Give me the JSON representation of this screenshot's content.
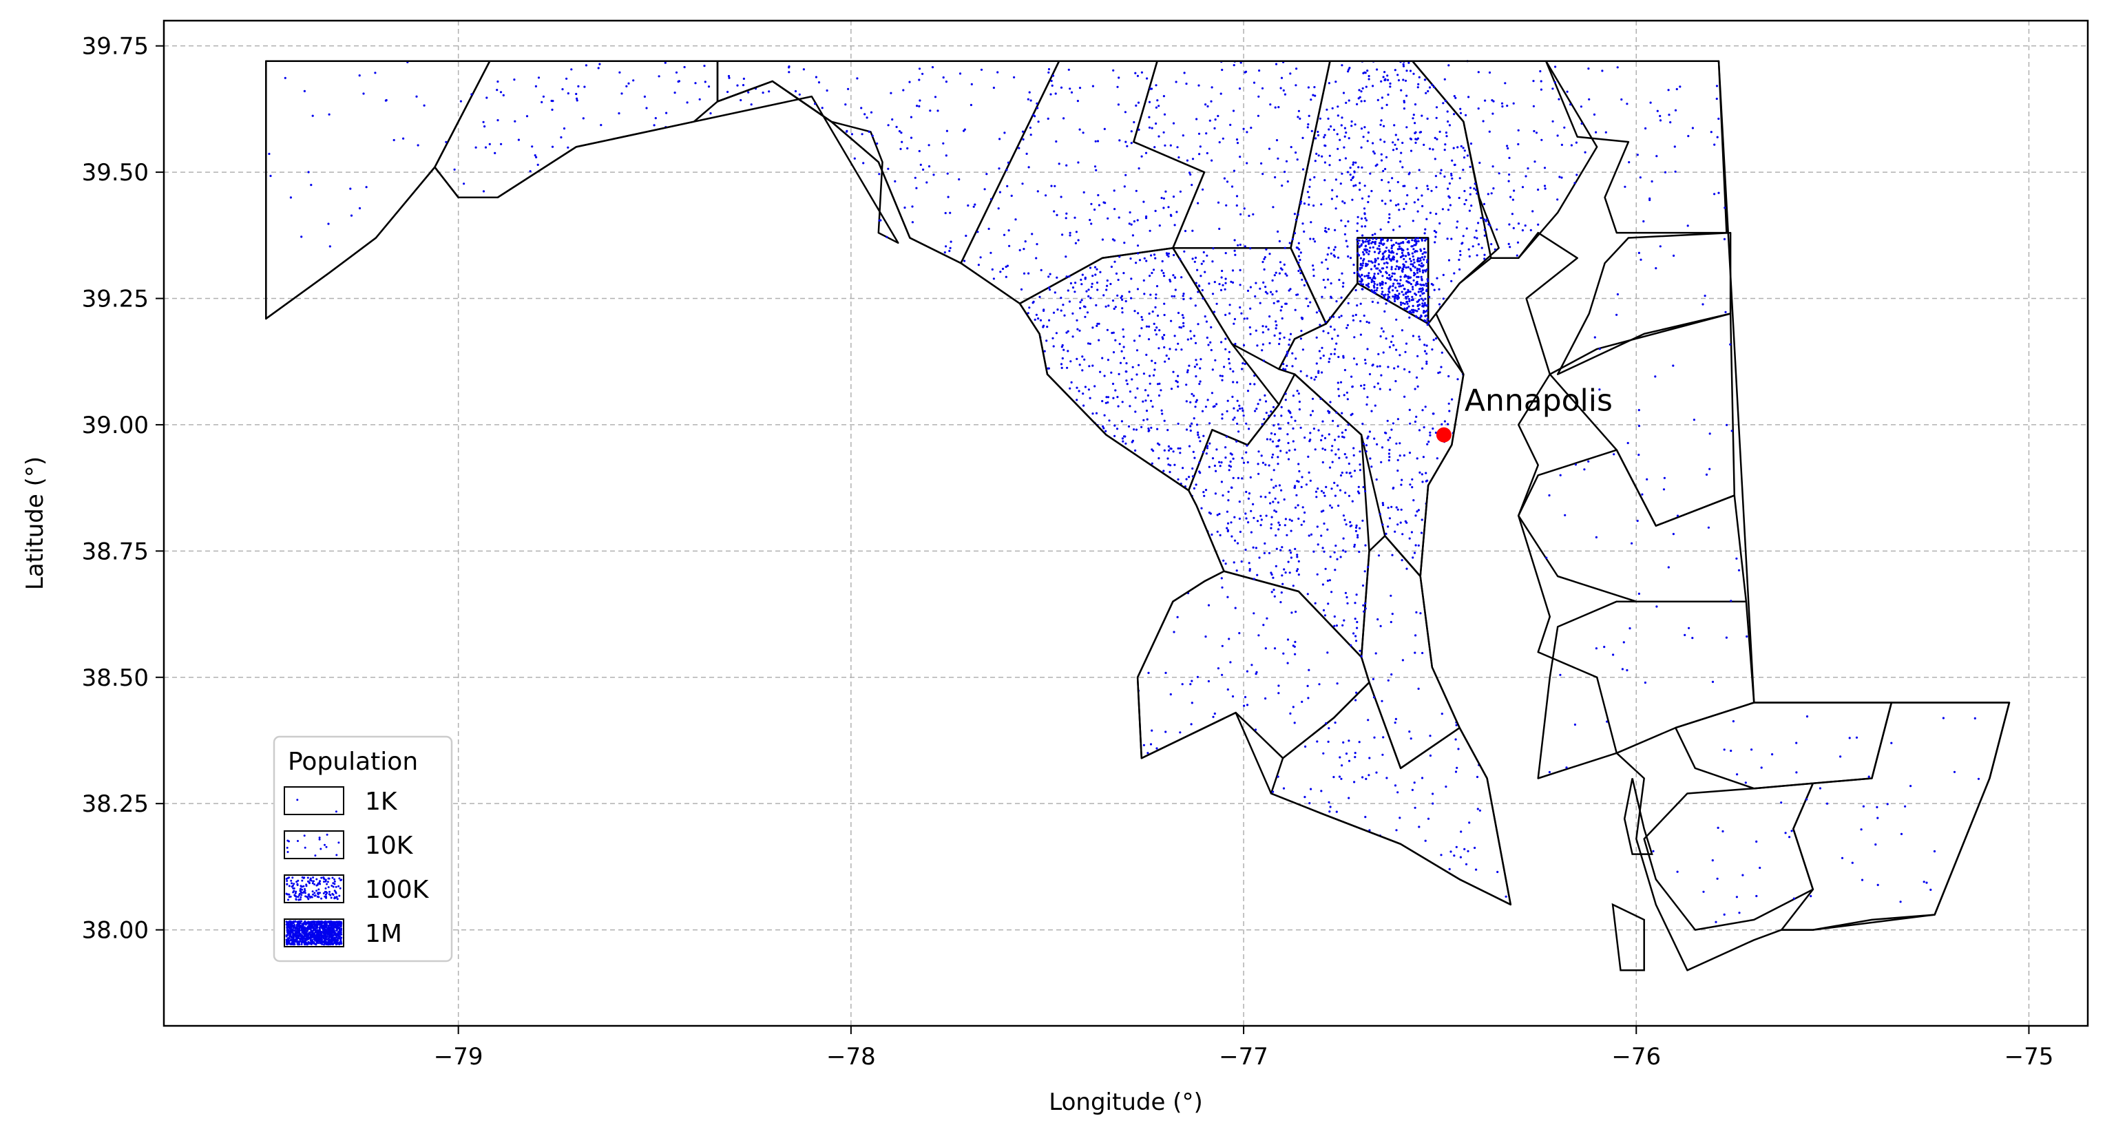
{
  "chart_data": {
    "type": "scatter",
    "subtype": "dot-density choropleth map",
    "title": "",
    "xlabel": "Longitude (°)",
    "ylabel": "Latitude (°)",
    "xlim": [
      -79.75,
      -74.85
    ],
    "ylim": [
      37.81,
      39.8
    ],
    "x_ticks": [
      -79,
      -78,
      -77,
      -76,
      -75
    ],
    "x_tick_labels": [
      "−79",
      "−78",
      "−77",
      "−76",
      "−75"
    ],
    "y_ticks": [
      38.0,
      38.25,
      38.5,
      38.75,
      39.0,
      39.25,
      39.5,
      39.75
    ],
    "y_tick_labels": [
      "38.00",
      "38.25",
      "38.50",
      "38.75",
      "39.00",
      "39.25",
      "39.50",
      "39.75"
    ],
    "grid": true,
    "dot_color": "#0000ee",
    "boundary_color": "#000000",
    "legend": {
      "title": "Population",
      "placement": "lower-left",
      "entries": [
        {
          "label": "1K",
          "density": 1
        },
        {
          "label": "10K",
          "density": 10
        },
        {
          "label": "100K",
          "density": 100
        },
        {
          "label": "1M",
          "density": 1000
        }
      ]
    },
    "annotations": [
      {
        "text": "Annapolis",
        "x": -76.49,
        "y": 38.98,
        "marker_color": "#ff0000"
      }
    ],
    "regions": [
      {
        "density": 2,
        "poly": [
          [
            -79.49,
            39.72
          ],
          [
            -78.92,
            39.72
          ],
          [
            -79.06,
            39.51
          ],
          [
            -79.21,
            39.37
          ],
          [
            -79.33,
            39.3
          ],
          [
            -79.49,
            39.21
          ]
        ]
      },
      {
        "density": 4,
        "poly": [
          [
            -78.92,
            39.72
          ],
          [
            -78.34,
            39.72
          ],
          [
            -78.34,
            39.64
          ],
          [
            -78.2,
            39.68
          ],
          [
            -78.05,
            39.6
          ],
          [
            -77.95,
            39.58
          ],
          [
            -77.92,
            39.52
          ],
          [
            -77.93,
            39.38
          ],
          [
            -77.88,
            39.36
          ],
          [
            -78.1,
            39.65
          ],
          [
            -78.4,
            39.6
          ],
          [
            -78.7,
            39.55
          ],
          [
            -78.9,
            39.45
          ],
          [
            -79.0,
            39.45
          ],
          [
            -79.06,
            39.51
          ]
        ]
      },
      {
        "density": 6,
        "poly": [
          [
            -78.1,
            39.72
          ],
          [
            -77.47,
            39.72
          ],
          [
            -77.72,
            39.32
          ],
          [
            -77.85,
            39.37
          ],
          [
            -77.93,
            39.52
          ],
          [
            -78.05,
            39.6
          ],
          [
            -78.2,
            39.68
          ],
          [
            -78.34,
            39.64
          ],
          [
            -78.34,
            39.72
          ]
        ]
      },
      {
        "density": 10,
        "poly": [
          [
            -77.47,
            39.72
          ],
          [
            -77.22,
            39.72
          ],
          [
            -77.28,
            39.56
          ],
          [
            -77.1,
            39.5
          ],
          [
            -77.18,
            39.35
          ],
          [
            -77.36,
            39.33
          ],
          [
            -77.57,
            39.24
          ],
          [
            -77.72,
            39.32
          ]
        ]
      },
      {
        "density": 14,
        "poly": [
          [
            -77.22,
            39.72
          ],
          [
            -76.78,
            39.72
          ],
          [
            -76.84,
            39.5
          ],
          [
            -76.88,
            39.35
          ],
          [
            -77.18,
            39.35
          ],
          [
            -77.1,
            39.5
          ],
          [
            -77.28,
            39.56
          ]
        ]
      },
      {
        "density": 28,
        "poly": [
          [
            -77.57,
            39.24
          ],
          [
            -77.36,
            39.33
          ],
          [
            -77.18,
            39.35
          ],
          [
            -77.03,
            39.16
          ],
          [
            -76.91,
            39.04
          ],
          [
            -76.99,
            38.96
          ],
          [
            -77.08,
            38.99
          ],
          [
            -77.14,
            38.87
          ],
          [
            -77.35,
            38.98
          ],
          [
            -77.5,
            39.1
          ],
          [
            -77.52,
            39.18
          ]
        ]
      },
      {
        "density": 28,
        "poly": [
          [
            -77.18,
            39.35
          ],
          [
            -76.88,
            39.35
          ],
          [
            -76.79,
            39.2
          ],
          [
            -76.87,
            39.17
          ],
          [
            -76.91,
            39.11
          ],
          [
            -77.03,
            39.16
          ]
        ]
      },
      {
        "density": 30,
        "poly": [
          [
            -76.78,
            39.72
          ],
          [
            -76.57,
            39.72
          ],
          [
            -76.44,
            39.6
          ],
          [
            -76.4,
            39.45
          ],
          [
            -76.35,
            39.35
          ],
          [
            -76.45,
            39.28
          ],
          [
            -76.51,
            39.22
          ],
          [
            -76.53,
            39.2
          ],
          [
            -76.53,
            39.37
          ],
          [
            -76.71,
            39.37
          ],
          [
            -76.71,
            39.28
          ],
          [
            -76.79,
            39.2
          ],
          [
            -76.88,
            39.35
          ],
          [
            -76.84,
            39.5
          ]
        ]
      },
      {
        "density": 300,
        "poly": [
          [
            -76.71,
            39.37
          ],
          [
            -76.53,
            39.37
          ],
          [
            -76.53,
            39.2
          ],
          [
            -76.71,
            39.28
          ]
        ]
      },
      {
        "density": 9,
        "poly": [
          [
            -76.57,
            39.72
          ],
          [
            -76.23,
            39.72
          ],
          [
            -76.1,
            39.55
          ],
          [
            -76.2,
            39.42
          ],
          [
            -76.3,
            39.33
          ],
          [
            -76.37,
            39.33
          ],
          [
            -76.44,
            39.6
          ]
        ]
      },
      {
        "density": 6,
        "poly": [
          [
            -76.23,
            39.72
          ],
          [
            -75.79,
            39.72
          ],
          [
            -75.77,
            39.38
          ],
          [
            -76.05,
            39.38
          ],
          [
            -76.08,
            39.45
          ],
          [
            -76.02,
            39.56
          ],
          [
            -76.15,
            39.57
          ]
        ]
      },
      {
        "density": 18,
        "poly": [
          [
            -76.79,
            39.2
          ],
          [
            -76.71,
            39.28
          ],
          [
            -76.53,
            39.2
          ],
          [
            -76.44,
            39.1
          ],
          [
            -76.47,
            38.96
          ],
          [
            -76.53,
            38.88
          ],
          [
            -76.55,
            38.7
          ],
          [
            -76.64,
            38.78
          ],
          [
            -76.7,
            38.98
          ],
          [
            -76.87,
            39.1
          ],
          [
            -76.91,
            39.11
          ],
          [
            -76.87,
            39.17
          ]
        ]
      },
      {
        "density": 28,
        "poly": [
          [
            -77.08,
            38.99
          ],
          [
            -76.99,
            38.96
          ],
          [
            -76.91,
            39.04
          ],
          [
            -76.87,
            39.1
          ],
          [
            -76.7,
            38.98
          ],
          [
            -76.68,
            38.75
          ],
          [
            -76.7,
            38.54
          ],
          [
            -76.86,
            38.67
          ],
          [
            -77.05,
            38.71
          ],
          [
            -77.12,
            38.84
          ],
          [
            -77.14,
            38.87
          ]
        ]
      },
      {
        "density": 7,
        "poly": [
          [
            -77.05,
            38.71
          ],
          [
            -76.86,
            38.67
          ],
          [
            -76.7,
            38.54
          ],
          [
            -76.68,
            38.49
          ],
          [
            -76.77,
            38.42
          ],
          [
            -76.9,
            38.34
          ],
          [
            -77.02,
            38.43
          ],
          [
            -77.26,
            38.34
          ],
          [
            -77.27,
            38.5
          ],
          [
            -77.18,
            38.65
          ],
          [
            -77.1,
            38.69
          ]
        ]
      },
      {
        "density": 5,
        "poly": [
          [
            -76.7,
            38.54
          ],
          [
            -76.68,
            38.75
          ],
          [
            -76.64,
            38.78
          ],
          [
            -76.55,
            38.7
          ],
          [
            -76.52,
            38.52
          ],
          [
            -76.45,
            38.4
          ],
          [
            -76.6,
            38.32
          ],
          [
            -76.68,
            38.49
          ]
        ]
      },
      {
        "density": 6,
        "poly": [
          [
            -76.9,
            38.34
          ],
          [
            -76.77,
            38.42
          ],
          [
            -76.68,
            38.49
          ],
          [
            -76.6,
            38.32
          ],
          [
            -76.45,
            38.4
          ],
          [
            -76.38,
            38.3
          ],
          [
            -76.32,
            38.05
          ],
          [
            -76.45,
            38.1
          ],
          [
            -76.6,
            38.17
          ],
          [
            -76.8,
            38.23
          ],
          [
            -76.93,
            38.27
          ]
        ]
      },
      {
        "density": 2,
        "poly": [
          [
            -76.02,
            39.37
          ],
          [
            -75.76,
            39.38
          ],
          [
            -75.76,
            39.22
          ],
          [
            -75.98,
            39.18
          ],
          [
            -76.2,
            39.1
          ],
          [
            -76.12,
            39.22
          ],
          [
            -76.08,
            39.32
          ]
        ]
      },
      {
        "density": 2,
        "poly": [
          [
            -75.76,
            39.22
          ],
          [
            -75.75,
            38.86
          ],
          [
            -75.95,
            38.8
          ],
          [
            -76.05,
            38.95
          ],
          [
            -76.22,
            39.1
          ],
          [
            -76.1,
            39.15
          ]
        ]
      },
      {
        "density": 2,
        "poly": [
          [
            -75.75,
            38.86
          ],
          [
            -75.72,
            38.65
          ],
          [
            -76.0,
            38.65
          ],
          [
            -76.2,
            38.7
          ],
          [
            -76.3,
            38.82
          ],
          [
            -76.25,
            38.9
          ],
          [
            -76.05,
            38.95
          ],
          [
            -75.95,
            38.8
          ]
        ]
      },
      {
        "density": 2,
        "poly": [
          [
            -75.72,
            38.65
          ],
          [
            -75.7,
            38.45
          ],
          [
            -75.9,
            38.4
          ],
          [
            -76.05,
            38.35
          ],
          [
            -76.25,
            38.3
          ],
          [
            -76.22,
            38.5
          ],
          [
            -76.2,
            38.6
          ],
          [
            -76.05,
            38.65
          ]
        ]
      },
      {
        "density": 3,
        "poly": [
          [
            -75.7,
            38.45
          ],
          [
            -75.35,
            38.45
          ],
          [
            -75.4,
            38.3
          ],
          [
            -75.55,
            38.29
          ],
          [
            -75.7,
            38.28
          ],
          [
            -75.85,
            38.32
          ],
          [
            -75.9,
            38.4
          ]
        ]
      },
      {
        "density": 3,
        "poly": [
          [
            -75.7,
            38.28
          ],
          [
            -75.55,
            38.29
          ],
          [
            -75.6,
            38.2
          ],
          [
            -75.55,
            38.08
          ],
          [
            -75.7,
            38.02
          ],
          [
            -75.85,
            38.0
          ],
          [
            -75.95,
            38.1
          ],
          [
            -75.98,
            38.18
          ],
          [
            -75.87,
            38.27
          ]
        ]
      },
      {
        "density": 2,
        "poly": [
          [
            -75.55,
            38.29
          ],
          [
            -75.4,
            38.3
          ],
          [
            -75.35,
            38.45
          ],
          [
            -75.05,
            38.45
          ],
          [
            -75.1,
            38.3
          ],
          [
            -75.24,
            38.03
          ],
          [
            -75.4,
            38.02
          ],
          [
            -75.55,
            38.0
          ],
          [
            -75.63,
            38.0
          ],
          [
            -75.55,
            38.08
          ],
          [
            -75.6,
            38.2
          ]
        ]
      }
    ]
  },
  "state_outline": [
    [
      -79.49,
      39.72
    ],
    [
      -75.79,
      39.72
    ],
    [
      -75.7,
      38.45
    ],
    [
      -75.05,
      38.45
    ],
    [
      -75.1,
      38.3
    ],
    [
      -75.24,
      38.03
    ],
    [
      -75.55,
      38.0
    ],
    [
      -75.63,
      38.0
    ],
    [
      -75.7,
      37.98
    ],
    [
      -75.87,
      37.92
    ],
    [
      -75.95,
      38.05
    ],
    [
      -76.0,
      38.18
    ],
    [
      -75.98,
      38.3
    ],
    [
      -76.05,
      38.35
    ],
    [
      -76.1,
      38.5
    ],
    [
      -76.25,
      38.55
    ],
    [
      -76.22,
      38.62
    ],
    [
      -76.3,
      38.82
    ],
    [
      -76.25,
      38.92
    ],
    [
      -76.3,
      39.0
    ],
    [
      -76.22,
      39.1
    ],
    [
      -76.28,
      39.25
    ],
    [
      -76.15,
      39.33
    ],
    [
      -76.25,
      39.38
    ],
    [
      -76.3,
      39.33
    ],
    [
      -76.37,
      39.33
    ],
    [
      -76.45,
      39.28
    ],
    [
      -76.51,
      39.22
    ],
    [
      -76.44,
      39.1
    ],
    [
      -76.47,
      38.96
    ],
    [
      -76.53,
      38.88
    ],
    [
      -76.55,
      38.7
    ],
    [
      -76.52,
      38.52
    ],
    [
      -76.45,
      38.4
    ],
    [
      -76.38,
      38.3
    ],
    [
      -76.32,
      38.05
    ],
    [
      -76.45,
      38.1
    ],
    [
      -76.6,
      38.17
    ],
    [
      -76.8,
      38.23
    ],
    [
      -76.93,
      38.27
    ],
    [
      -77.02,
      38.43
    ],
    [
      -77.26,
      38.34
    ],
    [
      -77.27,
      38.5
    ],
    [
      -77.18,
      38.65
    ],
    [
      -77.1,
      38.69
    ],
    [
      -77.05,
      38.71
    ],
    [
      -77.12,
      38.84
    ],
    [
      -77.14,
      38.87
    ],
    [
      -77.35,
      38.98
    ],
    [
      -77.5,
      39.1
    ],
    [
      -77.52,
      39.18
    ],
    [
      -77.57,
      39.24
    ],
    [
      -77.72,
      39.32
    ],
    [
      -77.85,
      39.37
    ],
    [
      -77.93,
      39.52
    ],
    [
      -78.05,
      39.6
    ],
    [
      -78.2,
      39.68
    ],
    [
      -78.34,
      39.64
    ],
    [
      -78.4,
      39.6
    ],
    [
      -78.7,
      39.55
    ],
    [
      -78.9,
      39.45
    ],
    [
      -79.0,
      39.45
    ],
    [
      -79.06,
      39.51
    ],
    [
      -79.21,
      39.37
    ],
    [
      -79.33,
      39.3
    ],
    [
      -79.49,
      39.21
    ]
  ],
  "islands": [
    [
      [
        -76.01,
        38.3
      ],
      [
        -75.98,
        38.2
      ],
      [
        -75.96,
        38.15
      ],
      [
        -76.01,
        38.15
      ],
      [
        -76.03,
        38.22
      ]
    ],
    [
      [
        -76.06,
        38.05
      ],
      [
        -76.04,
        37.92
      ],
      [
        -75.98,
        37.92
      ],
      [
        -75.98,
        38.02
      ]
    ]
  ]
}
